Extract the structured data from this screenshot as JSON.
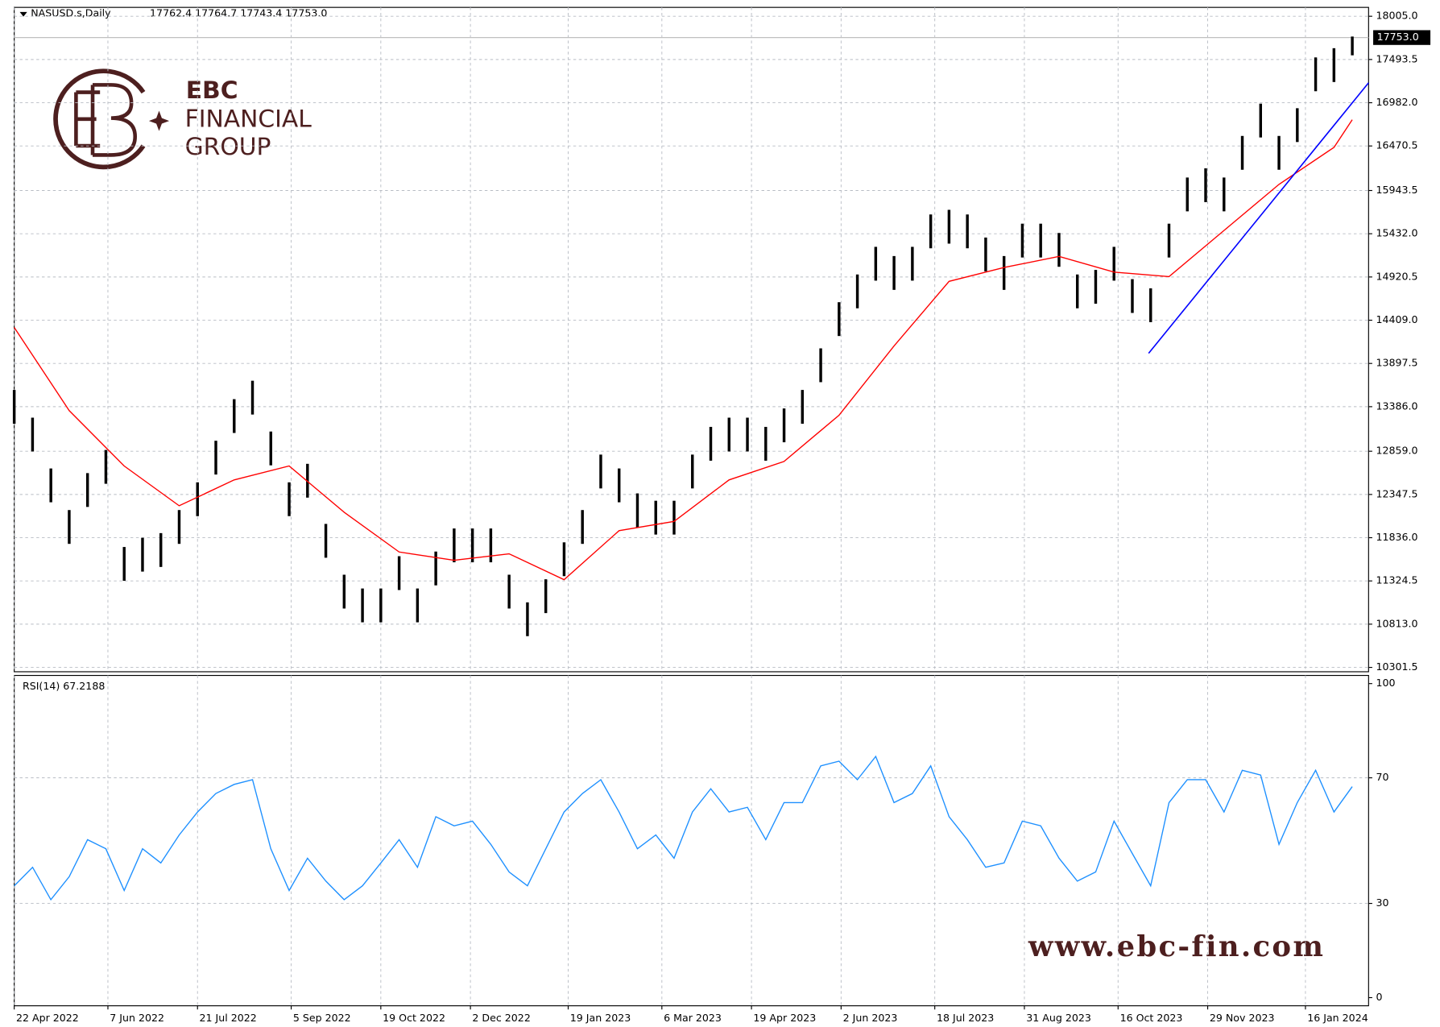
{
  "header": {
    "symbol": "NASUSD.s,Daily",
    "quote": "17762.4 17764.7 17743.4 17753.0"
  },
  "logo": {
    "name": "EBC",
    "line1": "FINANCIAL",
    "line2": "GROUP"
  },
  "watermark": "www.ebc-fin.com",
  "chart_data": {
    "type": "ohlc",
    "xlim": [
      "2022-04-22",
      "2024-02-16"
    ],
    "xticks": [
      {
        "value": "2022-04-22",
        "label": "22 Apr 2022"
      },
      {
        "value": "2022-06-07",
        "label": "7 Jun 2022"
      },
      {
        "value": "2022-07-21",
        "label": "21 Jul 2022"
      },
      {
        "value": "2022-09-05",
        "label": "5 Sep 2022"
      },
      {
        "value": "2022-10-19",
        "label": "19 Oct 2022"
      },
      {
        "value": "2022-12-02",
        "label": "2 Dec 2022"
      },
      {
        "value": "2023-01-19",
        "label": "19 Jan 2023"
      },
      {
        "value": "2023-03-06",
        "label": "6 Mar 2023"
      },
      {
        "value": "2023-04-19",
        "label": "19 Apr 2023"
      },
      {
        "value": "2023-06-02",
        "label": "2 Jun 2023"
      },
      {
        "value": "2023-07-18",
        "label": "18 Jul 2023"
      },
      {
        "value": "2023-08-31",
        "label": "31 Aug 2023"
      },
      {
        "value": "2023-10-16",
        "label": "16 Oct 2023"
      },
      {
        "value": "2023-11-29",
        "label": "29 Nov 2023"
      },
      {
        "value": "2024-01-16",
        "label": "16 Jan 2024"
      }
    ],
    "ylim": [
      10250,
      18110
    ],
    "yticks": [
      {
        "value": 18005,
        "label": "18005.0"
      },
      17493.5,
      {
        "value": 16982,
        "label": "16982.0"
      },
      16470.5,
      15943.5,
      {
        "value": 15432,
        "label": "15432.0"
      },
      14920.5,
      {
        "value": 14409,
        "label": "14409.0"
      },
      13897.5,
      {
        "value": 13386,
        "label": "13386.0"
      },
      {
        "value": 12859,
        "label": "12859.0"
      },
      12347.5,
      {
        "value": 11836,
        "label": "11836.0"
      },
      11324.5,
      {
        "value": 10813,
        "label": "10813.0"
      },
      10301.5
    ],
    "grid": true,
    "color": "#000000",
    "current_price": {
      "value": 17753,
      "label": "17753.0"
    },
    "x": [
      "2022-04-22",
      "2022-05-01",
      "2022-05-10",
      "2022-05-19",
      "2022-05-28",
      "2022-06-06",
      "2022-06-15",
      "2022-06-24",
      "2022-07-03",
      "2022-07-12",
      "2022-07-21",
      "2022-07-30",
      "2022-08-08",
      "2022-08-17",
      "2022-08-26",
      "2022-09-04",
      "2022-09-13",
      "2022-09-22",
      "2022-10-01",
      "2022-10-10",
      "2022-10-19",
      "2022-10-28",
      "2022-11-06",
      "2022-11-15",
      "2022-11-24",
      "2022-12-03",
      "2022-12-12",
      "2022-12-21",
      "2022-12-30",
      "2023-01-08",
      "2023-01-17",
      "2023-01-26",
      "2023-02-04",
      "2023-02-13",
      "2023-02-22",
      "2023-03-03",
      "2023-03-12",
      "2023-03-21",
      "2023-03-30",
      "2023-04-08",
      "2023-04-17",
      "2023-04-26",
      "2023-05-05",
      "2023-05-14",
      "2023-05-23",
      "2023-06-01",
      "2023-06-10",
      "2023-06-19",
      "2023-06-28",
      "2023-07-07",
      "2023-07-16",
      "2023-07-25",
      "2023-08-03",
      "2023-08-12",
      "2023-08-21",
      "2023-08-30",
      "2023-09-08",
      "2023-09-17",
      "2023-09-26",
      "2023-10-05",
      "2023-10-14",
      "2023-10-23",
      "2023-11-01",
      "2023-11-10",
      "2023-11-19",
      "2023-11-28",
      "2023-12-07",
      "2023-12-16",
      "2023-12-25",
      "2024-01-03",
      "2024-01-12",
      "2024-01-21",
      "2024-01-30",
      "2024-02-08"
    ],
    "high": [
      13584,
      13256,
      12655,
      12163,
      12600,
      12874,
      11726,
      11835,
      11890,
      12163,
      12491,
      12983,
      13475,
      13693,
      13092,
      12491,
      12710,
      11999,
      11398,
      11235,
      11235,
      11617,
      11235,
      11672,
      11945,
      11945,
      11945,
      11398,
      11071,
      11344,
      11781,
      12163,
      12819,
      12655,
      12360,
      12273,
      12273,
      12819,
      13147,
      13256,
      13256,
      13147,
      13365,
      13584,
      14076,
      14622,
      14950,
      15277,
      15168,
      15277,
      15660,
      15715,
      15660,
      15387,
      15168,
      15551,
      15551,
      15441,
      14950,
      15004,
      15277,
      14895,
      14786,
      15551,
      16097,
      16206,
      16097,
      16589,
      16971,
      16589,
      16917,
      17518,
      17627,
      17765
    ],
    "low": [
      13184,
      12856,
      12255,
      11763,
      12200,
      12474,
      11326,
      11435,
      11490,
      11763,
      12091,
      12583,
      13075,
      13293,
      12692,
      12091,
      12310,
      11599,
      10998,
      10835,
      10835,
      11217,
      10835,
      11272,
      11545,
      11545,
      11545,
      10998,
      10671,
      10944,
      11381,
      11763,
      12419,
      12255,
      11960,
      11873,
      11873,
      12419,
      12747,
      12856,
      12856,
      12747,
      12965,
      13184,
      13676,
      14222,
      14550,
      14877,
      14768,
      14877,
      15260,
      15315,
      15260,
      14987,
      14768,
      15151,
      15151,
      15041,
      14550,
      14604,
      14877,
      14495,
      14386,
      15151,
      15697,
      15806,
      15697,
      16189,
      16571,
      16189,
      16517,
      17118,
      17227,
      17543
    ],
    "ma": {
      "color": "#ff0000",
      "x": [
        "2022-04-22",
        "2022-05-19",
        "2022-06-15",
        "2022-07-12",
        "2022-08-08",
        "2022-09-04",
        "2022-10-01",
        "2022-10-28",
        "2022-11-24",
        "2022-12-21",
        "2023-01-17",
        "2023-02-13",
        "2023-03-12",
        "2023-04-08",
        "2023-05-05",
        "2023-06-01",
        "2023-06-28",
        "2023-07-25",
        "2023-08-21",
        "2023-09-17",
        "2023-10-14",
        "2023-11-10",
        "2023-12-07",
        "2024-01-03",
        "2024-01-30",
        "2024-02-08"
      ],
      "values": [
        14323,
        13339,
        12684,
        12214,
        12520,
        12684,
        12137,
        11667,
        11569,
        11645,
        11339,
        11919,
        12028,
        12520,
        12738,
        13285,
        14104,
        14869,
        15033,
        15164,
        14978,
        14924,
        15470,
        16016,
        16454,
        16781
      ]
    },
    "trendline": {
      "color": "#0000ff",
      "x": [
        "2023-10-31",
        "2024-02-16"
      ],
      "values": [
        14017,
        17218
      ]
    },
    "rsi": {
      "label": "RSI(14) 67.2188",
      "color": "#1e90ff",
      "ylim": [
        -2.6,
        102.6
      ],
      "yticks": [
        100,
        70,
        30,
        0
      ],
      "values": [
        35.6,
        41.5,
        31.2,
        38.5,
        50.3,
        47.4,
        34.1,
        47.4,
        42.9,
        51.8,
        59.1,
        65.0,
        67.9,
        69.4,
        47.4,
        34.1,
        44.4,
        37.1,
        31.2,
        35.6,
        42.9,
        50.3,
        41.5,
        57.6,
        54.7,
        56.2,
        48.8,
        40.0,
        35.6,
        47.4,
        59.1,
        65.0,
        69.4,
        59.1,
        47.4,
        51.8,
        44.4,
        59.1,
        66.5,
        59.1,
        60.6,
        50.3,
        62.1,
        62.1,
        73.8,
        75.3,
        69.4,
        76.8,
        62.1,
        65.0,
        73.8,
        57.6,
        50.3,
        41.5,
        42.9,
        56.2,
        54.7,
        44.4,
        37.1,
        40.0,
        56.2,
        45.9,
        35.6,
        62.1,
        69.4,
        69.4,
        59.1,
        72.4,
        70.9,
        48.8,
        62.1,
        72.4,
        59.1,
        67.2
      ]
    }
  }
}
